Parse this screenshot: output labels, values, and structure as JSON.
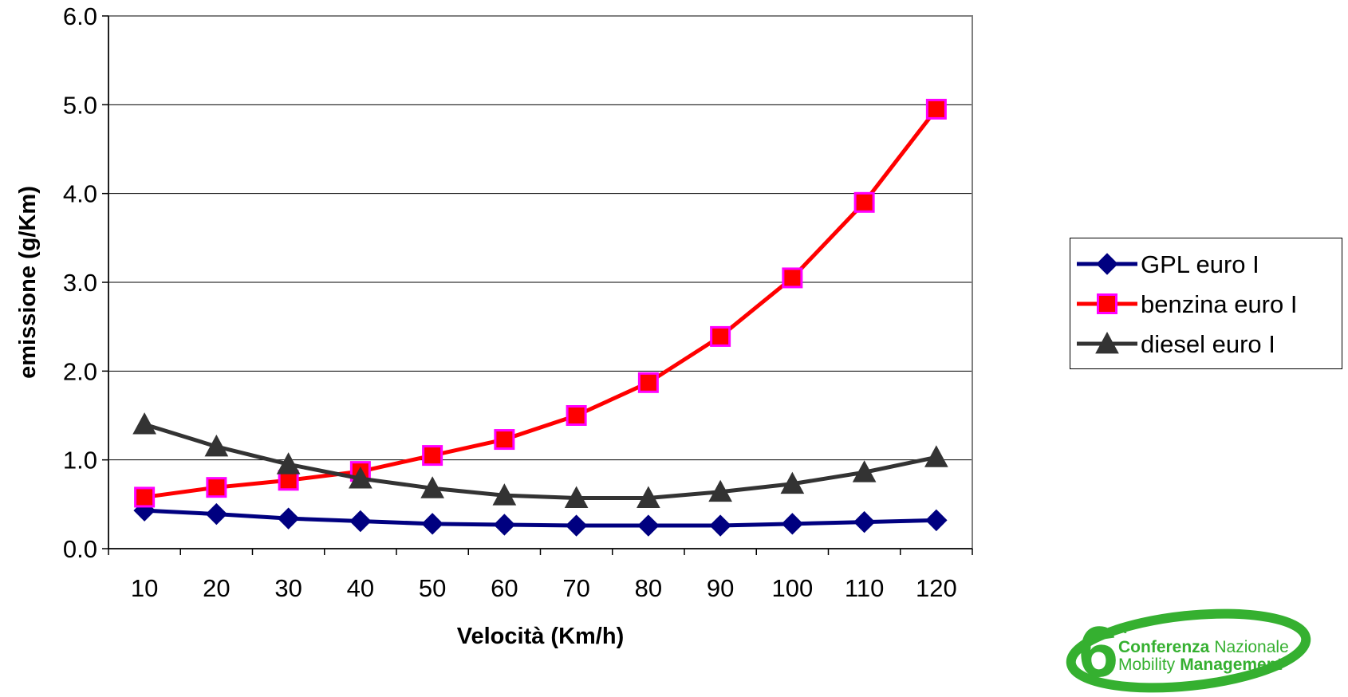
{
  "chart_data": {
    "type": "line",
    "title": "",
    "xlabel": "Velocità (Km/h)",
    "ylabel": "emissione (g/Km)",
    "categories": [
      "10",
      "20",
      "30",
      "40",
      "50",
      "60",
      "70",
      "80",
      "90",
      "100",
      "110",
      "120"
    ],
    "ylim": [
      0,
      6
    ],
    "yticks": [
      "0.0",
      "1.0",
      "2.0",
      "3.0",
      "4.0",
      "5.0",
      "6.0"
    ],
    "grid": true,
    "legend_position": "right",
    "series": [
      {
        "name": "GPL euro I",
        "color": "#000080",
        "marker": "diamond",
        "values": [
          0.43,
          0.39,
          0.34,
          0.31,
          0.28,
          0.27,
          0.26,
          0.26,
          0.26,
          0.28,
          0.3,
          0.32
        ]
      },
      {
        "name": "benzina euro I",
        "color": "#ff0000",
        "marker": "square",
        "marker_edge": "#ff00ff",
        "values": [
          0.58,
          0.69,
          0.77,
          0.87,
          1.05,
          1.23,
          1.5,
          1.87,
          2.39,
          3.05,
          3.9,
          4.95
        ]
      },
      {
        "name": "diesel euro I",
        "color": "#333333",
        "marker": "triangle",
        "values": [
          1.4,
          1.15,
          0.95,
          0.79,
          0.68,
          0.6,
          0.57,
          0.57,
          0.64,
          0.73,
          0.86,
          1.03
        ]
      }
    ]
  },
  "logo": {
    "number": "6",
    "superscript": "a",
    "line1_bold": "Conferenza",
    "line1_rest": "Nazionale",
    "line2_rest": "Mobility",
    "line2_bold": "Management"
  }
}
